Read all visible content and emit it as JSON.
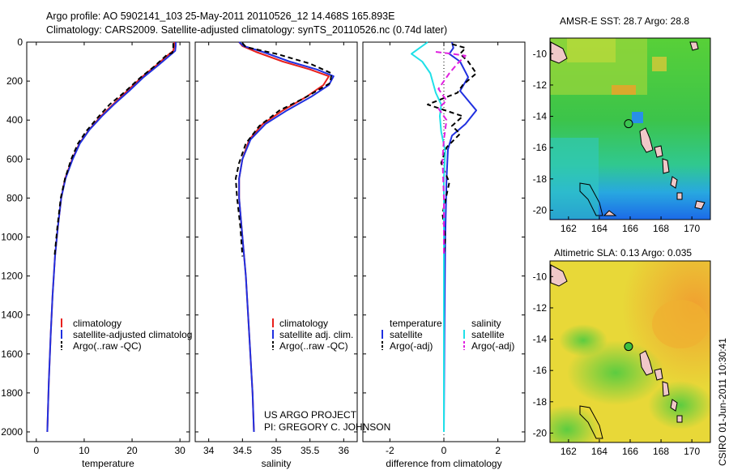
{
  "header": {
    "line1": "Argo profile: AO 5902141_103 25-May-2011 20110526_12 14.468S 165.893E",
    "line2": "Climatology: CARS2009. Satellite-adjusted climatology: synTS_20110526.nc (0.74d later)"
  },
  "project": {
    "line1": "US ARGO PROJECT",
    "line2": "PI: GREGORY C. JOHNSON"
  },
  "stamp": "CSIRO 01-Jun-2011 10:30:41",
  "colors": {
    "red": "#e8201c",
    "blue": "#2030e0",
    "black": "#000000",
    "cyan": "#20e0e8",
    "magenta": "#e020e0"
  },
  "chart_data": [
    {
      "type": "line",
      "id": "temperature",
      "xlabel": "temperature",
      "ylabel": "",
      "xlim": [
        -2,
        32
      ],
      "ylim": [
        2050,
        0
      ],
      "xticks": [
        0,
        10,
        20,
        30
      ],
      "yticks": [
        0,
        200,
        400,
        600,
        800,
        1000,
        1200,
        1400,
        1600,
        1800,
        2000
      ],
      "series": [
        {
          "name": "climatology",
          "color": "#e8201c",
          "dash": "",
          "points": [
            [
              28.8,
              0
            ],
            [
              28.8,
              20
            ],
            [
              28.6,
              45
            ],
            [
              27.8,
              60
            ],
            [
              25,
              120
            ],
            [
              22,
              180
            ],
            [
              19,
              250
            ],
            [
              16,
              320
            ],
            [
              13.5,
              380
            ],
            [
              11,
              450
            ],
            [
              9,
              520
            ],
            [
              7.5,
              600
            ],
            [
              6,
              700
            ],
            [
              5.2,
              800
            ],
            [
              4.5,
              950
            ],
            [
              3.9,
              1100
            ],
            [
              3.4,
              1300
            ],
            [
              3,
              1500
            ],
            [
              2.6,
              1750
            ],
            [
              2.3,
              2000
            ]
          ]
        },
        {
          "name": "satellite-adjusted climatology",
          "color": "#2030e0",
          "dash": "",
          "points": [
            [
              29.1,
              0
            ],
            [
              29.1,
              20
            ],
            [
              29,
              45
            ],
            [
              28.3,
              60
            ],
            [
              25.4,
              120
            ],
            [
              22.4,
              180
            ],
            [
              19.4,
              250
            ],
            [
              16.2,
              320
            ],
            [
              13.7,
              380
            ],
            [
              11.1,
              450
            ],
            [
              9.1,
              520
            ],
            [
              7.6,
              600
            ],
            [
              6.1,
              700
            ],
            [
              5.2,
              800
            ],
            [
              4.5,
              950
            ],
            [
              3.9,
              1100
            ],
            [
              3.4,
              1300
            ],
            [
              3,
              1500
            ],
            [
              2.6,
              1750
            ],
            [
              2.3,
              2000
            ]
          ]
        },
        {
          "name": "Argo(..raw -QC)",
          "color": "#000000",
          "dash": "6,4",
          "points": [
            [
              28.6,
              5
            ],
            [
              28.6,
              30
            ],
            [
              28.4,
              55
            ],
            [
              27.3,
              65
            ],
            [
              24.6,
              125
            ],
            [
              21.6,
              185
            ],
            [
              18.5,
              255
            ],
            [
              15.3,
              320
            ],
            [
              12.9,
              385
            ],
            [
              10.5,
              455
            ],
            [
              8.7,
              520
            ],
            [
              7.3,
              600
            ],
            [
              6,
              700
            ],
            [
              5.1,
              800
            ],
            [
              4.4,
              950
            ],
            [
              3.8,
              1100
            ]
          ]
        }
      ],
      "legend": [
        "climatology",
        "satellite-adjusted climatolog",
        "Argo(..raw -QC)"
      ]
    },
    {
      "type": "line",
      "id": "salinity",
      "xlabel": "salinity",
      "ylabel": "",
      "xlim": [
        33.8,
        36.2
      ],
      "ylim": [
        2050,
        0
      ],
      "xticks": [
        34,
        34.5,
        35,
        35.5,
        36
      ],
      "yticks": [],
      "series": [
        {
          "name": "climatology",
          "color": "#e8201c",
          "dash": "",
          "points": [
            [
              34.45,
              0
            ],
            [
              34.5,
              20
            ],
            [
              34.7,
              50
            ],
            [
              35.1,
              100
            ],
            [
              35.5,
              140
            ],
            [
              35.78,
              175
            ],
            [
              35.7,
              220
            ],
            [
              35.45,
              280
            ],
            [
              35.1,
              350
            ],
            [
              34.8,
              420
            ],
            [
              34.6,
              500
            ],
            [
              34.5,
              600
            ],
            [
              34.45,
              700
            ],
            [
              34.45,
              800
            ],
            [
              34.5,
              1000
            ],
            [
              34.55,
              1200
            ],
            [
              34.6,
              1500
            ],
            [
              34.65,
              1800
            ],
            [
              34.67,
              2000
            ]
          ]
        },
        {
          "name": "satellite adj. clim.",
          "color": "#2030e0",
          "dash": "",
          "points": [
            [
              34.45,
              0
            ],
            [
              34.52,
              20
            ],
            [
              34.8,
              50
            ],
            [
              35.2,
              100
            ],
            [
              35.6,
              140
            ],
            [
              35.85,
              175
            ],
            [
              35.78,
              220
            ],
            [
              35.52,
              280
            ],
            [
              35.16,
              350
            ],
            [
              34.84,
              420
            ],
            [
              34.62,
              500
            ],
            [
              34.5,
              600
            ],
            [
              34.45,
              700
            ],
            [
              34.45,
              800
            ],
            [
              34.5,
              1000
            ],
            [
              34.55,
              1200
            ],
            [
              34.6,
              1500
            ],
            [
              34.65,
              1800
            ],
            [
              34.67,
              2000
            ]
          ]
        },
        {
          "name": "Argo(..raw -QC)",
          "color": "#000000",
          "dash": "6,4",
          "points": [
            [
              34.5,
              5
            ],
            [
              34.55,
              25
            ],
            [
              35,
              60
            ],
            [
              35.5,
              110
            ],
            [
              35.82,
              160
            ],
            [
              35.8,
              210
            ],
            [
              35.4,
              290
            ],
            [
              35.05,
              350
            ],
            [
              34.75,
              430
            ],
            [
              34.55,
              520
            ],
            [
              34.45,
              620
            ],
            [
              34.4,
              700
            ],
            [
              34.42,
              800
            ],
            [
              34.47,
              950
            ],
            [
              34.5,
              1100
            ]
          ]
        }
      ],
      "legend": [
        "climatology",
        "satellite adj. clim.",
        "Argo(..raw -QC)"
      ]
    },
    {
      "type": "line",
      "id": "difference",
      "xlabel": "difference from climatology",
      "ylabel": "",
      "xlim": [
        -3,
        3
      ],
      "ylim": [
        2050,
        0
      ],
      "xticks": [
        -2,
        0,
        2
      ],
      "yticks": [],
      "series": [
        {
          "name": "temperature satellite",
          "color": "#2030e0",
          "dash": "",
          "points": [
            [
              0.3,
              0
            ],
            [
              0.35,
              30
            ],
            [
              0.2,
              60
            ],
            [
              0.6,
              100
            ],
            [
              0.9,
              180
            ],
            [
              0.6,
              250
            ],
            [
              1.2,
              350
            ],
            [
              0.8,
              420
            ],
            [
              0.3,
              480
            ],
            [
              0.15,
              550
            ],
            [
              0.1,
              700
            ],
            [
              0.05,
              1000
            ],
            [
              0.02,
              1500
            ],
            [
              0,
              2000
            ]
          ]
        },
        {
          "name": "temperature Argo(-adj)",
          "color": "#000000",
          "dash": "6,4",
          "points": [
            [
              0.3,
              10
            ],
            [
              0.8,
              30
            ],
            [
              0.6,
              60
            ],
            [
              0.9,
              100
            ],
            [
              1.2,
              160
            ],
            [
              0.7,
              220
            ],
            [
              0.5,
              260
            ],
            [
              -0.6,
              320
            ],
            [
              0.7,
              380
            ],
            [
              0.3,
              430
            ],
            [
              0.6,
              470
            ],
            [
              0.1,
              540
            ],
            [
              -0.1,
              620
            ],
            [
              0.2,
              720
            ],
            [
              -0.05,
              880
            ],
            [
              0.05,
              1000
            ],
            [
              0,
              1100
            ]
          ]
        },
        {
          "name": "salinity satellite",
          "color": "#20e0e8",
          "dash": "",
          "points": [
            [
              -0.6,
              0
            ],
            [
              -1.2,
              60
            ],
            [
              -0.8,
              100
            ],
            [
              -0.5,
              160
            ],
            [
              -0.3,
              260
            ],
            [
              -0.1,
              320
            ],
            [
              -0.15,
              380
            ],
            [
              -0.1,
              460
            ],
            [
              0.05,
              560
            ],
            [
              0,
              700
            ],
            [
              0,
              1000
            ],
            [
              0,
              1500
            ],
            [
              0,
              2000
            ]
          ]
        },
        {
          "name": "salinity Argo(-adj)",
          "color": "#e020e0",
          "dash": "7,4",
          "points": [
            [
              -0.3,
              50
            ],
            [
              0.3,
              60
            ],
            [
              0.8,
              70
            ],
            [
              0.5,
              110
            ],
            [
              0.2,
              160
            ],
            [
              -0.2,
              240
            ],
            [
              0.1,
              300
            ],
            [
              -0.2,
              340
            ],
            [
              0.1,
              400
            ],
            [
              0,
              500
            ],
            [
              -0.05,
              600
            ],
            [
              0,
              800
            ],
            [
              0,
              1100
            ]
          ]
        }
      ],
      "legend_headers": [
        "temperature",
        "salinity"
      ],
      "legend": [
        "satellite",
        "Argo(-adj)",
        "satellite",
        "Argo(-adj)"
      ]
    },
    {
      "type": "heatmap",
      "id": "sst-map",
      "title": "AMSR-E SST: 28.7 Argo: 28.8",
      "xlim": [
        160.8,
        171.2
      ],
      "ylim": [
        -20.6,
        -9
      ],
      "xticks": [
        162,
        164,
        166,
        168,
        170
      ],
      "yticks": [
        -10,
        -12,
        -14,
        -16,
        -18,
        -20
      ],
      "float_position": [
        165.893,
        -14.468
      ]
    },
    {
      "type": "heatmap",
      "id": "sla-map",
      "title": "Altimetric SLA: 0.13 Argo: 0.035",
      "xlim": [
        160.8,
        171.2
      ],
      "ylim": [
        -20.6,
        -9
      ],
      "xticks": [
        162,
        164,
        166,
        168,
        170
      ],
      "yticks": [
        -10,
        -12,
        -14,
        -16,
        -18,
        -20
      ],
      "float_position": [
        165.893,
        -14.468
      ]
    }
  ]
}
